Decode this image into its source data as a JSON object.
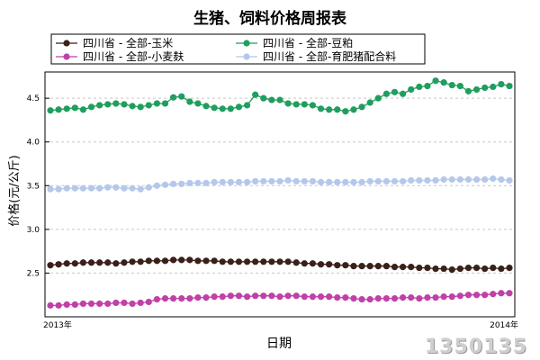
{
  "chart_data": {
    "type": "line",
    "title": "生猪、饲料价格周报表",
    "xlabel": "日期",
    "ylabel": "价格(元/公斤)",
    "x_tick_labels": [
      "2013年",
      "2014年"
    ],
    "ylim": [
      2.0,
      4.8
    ],
    "y_ticks": [
      2.5,
      3.0,
      3.5,
      4.0,
      4.5
    ],
    "grid": true,
    "legend_position": "top",
    "series": [
      {
        "name": "四川省 - 全部-玉米",
        "color": "#3b1f1a",
        "values": [
          2.59,
          2.6,
          2.61,
          2.61,
          2.62,
          2.62,
          2.62,
          2.62,
          2.61,
          2.62,
          2.63,
          2.63,
          2.64,
          2.64,
          2.64,
          2.65,
          2.65,
          2.65,
          2.64,
          2.64,
          2.64,
          2.63,
          2.63,
          2.63,
          2.63,
          2.63,
          2.63,
          2.63,
          2.63,
          2.63,
          2.62,
          2.61,
          2.61,
          2.6,
          2.6,
          2.59,
          2.59,
          2.58,
          2.58,
          2.58,
          2.58,
          2.58,
          2.57,
          2.57,
          2.57,
          2.56,
          2.56,
          2.55,
          2.55,
          2.54,
          2.55,
          2.56,
          2.56,
          2.55,
          2.56,
          2.55,
          2.56
        ]
      },
      {
        "name": "四川省 - 全部-豆粕",
        "color": "#1f9e5e",
        "values": [
          4.36,
          4.37,
          4.38,
          4.39,
          4.37,
          4.4,
          4.42,
          4.43,
          4.44,
          4.43,
          4.41,
          4.4,
          4.42,
          4.44,
          4.44,
          4.51,
          4.52,
          4.46,
          4.44,
          4.41,
          4.39,
          4.38,
          4.38,
          4.4,
          4.42,
          4.54,
          4.5,
          4.48,
          4.48,
          4.44,
          4.43,
          4.43,
          4.42,
          4.38,
          4.37,
          4.37,
          4.35,
          4.37,
          4.4,
          4.45,
          4.5,
          4.55,
          4.57,
          4.55,
          4.6,
          4.63,
          4.64,
          4.7,
          4.68,
          4.65,
          4.64,
          4.58,
          4.6,
          4.62,
          4.63,
          4.66,
          4.64
        ]
      },
      {
        "name": "四川省 - 全部-小麦麸",
        "color": "#c040a8",
        "values": [
          2.13,
          2.13,
          2.14,
          2.14,
          2.15,
          2.15,
          2.15,
          2.15,
          2.16,
          2.16,
          2.15,
          2.16,
          2.17,
          2.2,
          2.21,
          2.21,
          2.21,
          2.21,
          2.22,
          2.22,
          2.23,
          2.23,
          2.24,
          2.24,
          2.23,
          2.24,
          2.24,
          2.24,
          2.23,
          2.24,
          2.24,
          2.23,
          2.23,
          2.23,
          2.23,
          2.22,
          2.22,
          2.21,
          2.2,
          2.2,
          2.21,
          2.21,
          2.21,
          2.22,
          2.22,
          2.21,
          2.22,
          2.22,
          2.23,
          2.23,
          2.24,
          2.25,
          2.25,
          2.25,
          2.26,
          2.27,
          2.27
        ]
      },
      {
        "name": "四川省 - 全部-育肥猪配合料",
        "color": "#b4c8ec",
        "values": [
          3.46,
          3.46,
          3.47,
          3.47,
          3.47,
          3.47,
          3.47,
          3.48,
          3.48,
          3.47,
          3.47,
          3.46,
          3.48,
          3.5,
          3.51,
          3.52,
          3.52,
          3.53,
          3.53,
          3.53,
          3.54,
          3.54,
          3.54,
          3.54,
          3.54,
          3.55,
          3.55,
          3.55,
          3.55,
          3.56,
          3.55,
          3.55,
          3.55,
          3.54,
          3.54,
          3.54,
          3.54,
          3.54,
          3.54,
          3.55,
          3.55,
          3.55,
          3.55,
          3.55,
          3.56,
          3.56,
          3.56,
          3.56,
          3.57,
          3.57,
          3.57,
          3.57,
          3.57,
          3.57,
          3.58,
          3.57,
          3.56
        ]
      }
    ]
  },
  "watermark": "1350135"
}
